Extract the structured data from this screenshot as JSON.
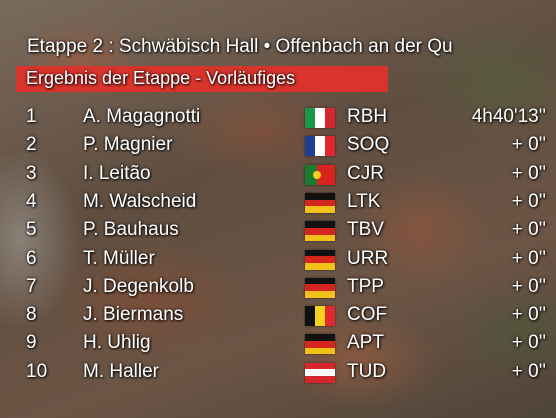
{
  "header": {
    "title": "Etappe 2 : Schwäbisch Hall • Offenbach an der Qu",
    "subtitle": "Ergebnis der Etappe - Vorläufiges"
  },
  "table": {
    "rows": [
      {
        "rank": "1",
        "name": "A. Magagnotti",
        "team": "RBH",
        "time": "4h40'13''"
      },
      {
        "rank": "2",
        "name": "P. Magnier",
        "team": "SOQ",
        "time": "+ 0''"
      },
      {
        "rank": "3",
        "name": "I. Leitão",
        "team": "CJR",
        "time": "+ 0''"
      },
      {
        "rank": "4",
        "name": "M. Walscheid",
        "team": "LTK",
        "time": "+ 0''"
      },
      {
        "rank": "5",
        "name": "P. Bauhaus",
        "team": "TBV",
        "time": "+ 0''"
      },
      {
        "rank": "6",
        "name": "T. Müller",
        "team": "URR",
        "time": "+ 0''"
      },
      {
        "rank": "7",
        "name": "J. Degenkolb",
        "team": "TPP",
        "time": "+ 0''"
      },
      {
        "rank": "8",
        "name": "J. Biermans",
        "team": "COF",
        "time": "+ 0''"
      },
      {
        "rank": "9",
        "name": "H. Uhlig",
        "team": "APT",
        "time": "+ 0''"
      },
      {
        "rank": "10",
        "name": "M. Haller",
        "team": "TUD",
        "time": "+ 0''"
      }
    ]
  }
}
